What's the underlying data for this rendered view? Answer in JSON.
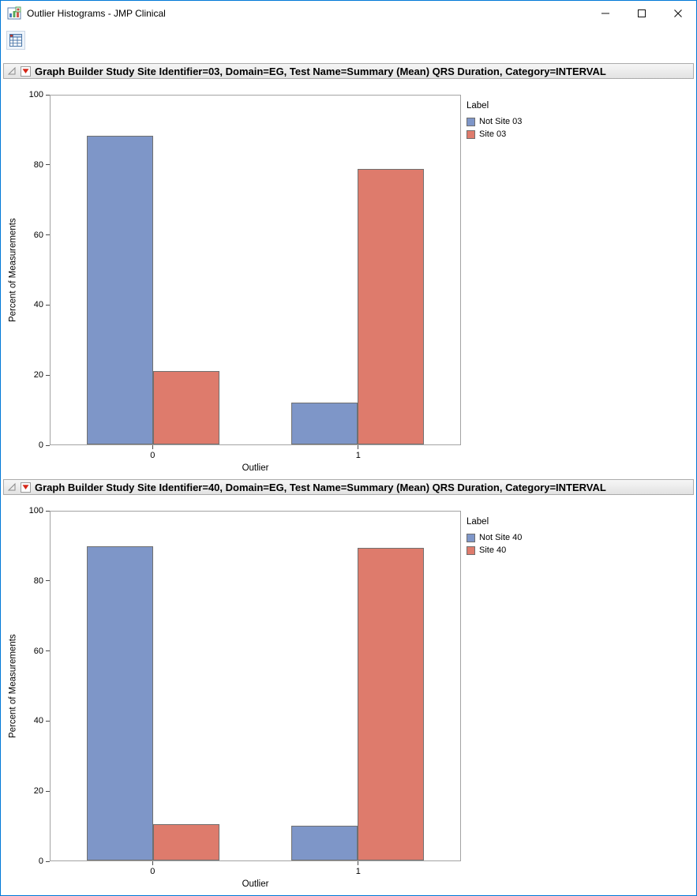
{
  "window": {
    "title": "Outlier Histograms - JMP Clinical",
    "app_icon": "jmp-clinical-icon",
    "controls": [
      "minimize",
      "maximize",
      "close"
    ]
  },
  "toolbar": {
    "buttons": [
      {
        "icon": "data-table-icon"
      }
    ]
  },
  "sections": [
    {
      "title": "Graph Builder Study Site Identifier=03, Domain=EG, Test Name=Summary (Mean) QRS Duration, Category=INTERVAL"
    },
    {
      "title": "Graph Builder Study Site Identifier=40, Domain=EG, Test Name=Summary (Mean) QRS Duration, Category=INTERVAL"
    }
  ],
  "chart_data": [
    {
      "type": "bar",
      "categories": [
        "0",
        "1"
      ],
      "series": [
        {
          "name": "Not Site 03",
          "color": "#7e96c8",
          "values": [
            88.5,
            12
          ]
        },
        {
          "name": "Site 03",
          "color": "#de7b6c",
          "values": [
            21,
            79
          ]
        }
      ],
      "title": "Graph Builder Study Site Identifier=03, Domain=EG, Test Name=Summary (Mean) QRS Duration, Category=INTERVAL",
      "xlabel": "Outlier",
      "ylabel": "Percent of Measurements",
      "ylim": [
        0,
        100
      ],
      "yticks": [
        0,
        20,
        40,
        60,
        80,
        100
      ],
      "legend_title": "Label",
      "legend_position": "right",
      "grid": false
    },
    {
      "type": "bar",
      "categories": [
        "0",
        "1"
      ],
      "series": [
        {
          "name": "Not Site 40",
          "color": "#7e96c8",
          "values": [
            90,
            10
          ]
        },
        {
          "name": "Site 40",
          "color": "#de7b6c",
          "values": [
            10.5,
            89.5
          ]
        }
      ],
      "title": "Graph Builder Study Site Identifier=40, Domain=EG, Test Name=Summary (Mean) QRS Duration, Category=INTERVAL",
      "xlabel": "Outlier",
      "ylabel": "Percent of Measurements",
      "ylim": [
        0,
        100
      ],
      "yticks": [
        0,
        20,
        40,
        60,
        80,
        100
      ],
      "legend_title": "Label",
      "legend_position": "right",
      "grid": false
    }
  ]
}
